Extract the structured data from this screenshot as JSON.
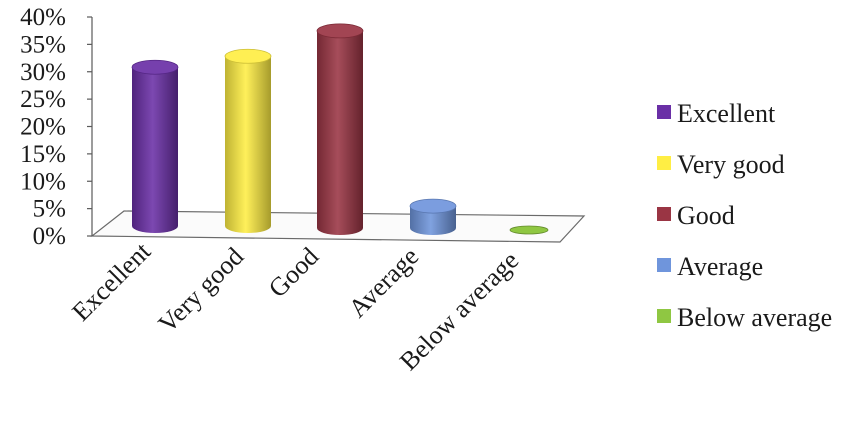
{
  "chart_data": {
    "type": "bar",
    "style": "3d-cylinder",
    "categories": [
      "Excellent",
      "Very  good",
      "Good",
      "Average",
      "Below average"
    ],
    "values": [
      29,
      31,
      36,
      4,
      0
    ],
    "colors": [
      "#6a2fa6",
      "#ffee44",
      "#9a3544",
      "#6f95dc",
      "#8fc742"
    ],
    "ylim": [
      0,
      40
    ],
    "yticks": [
      "0%",
      "5%",
      "10%",
      "15%",
      "20%",
      "25%",
      "30%",
      "35%",
      "40%"
    ],
    "title": "",
    "xlabel": "",
    "ylabel": "",
    "grid": false,
    "legend": {
      "position": "right",
      "entries": [
        "Excellent",
        "Very  good",
        "Good",
        "Average",
        "Below average"
      ]
    }
  }
}
